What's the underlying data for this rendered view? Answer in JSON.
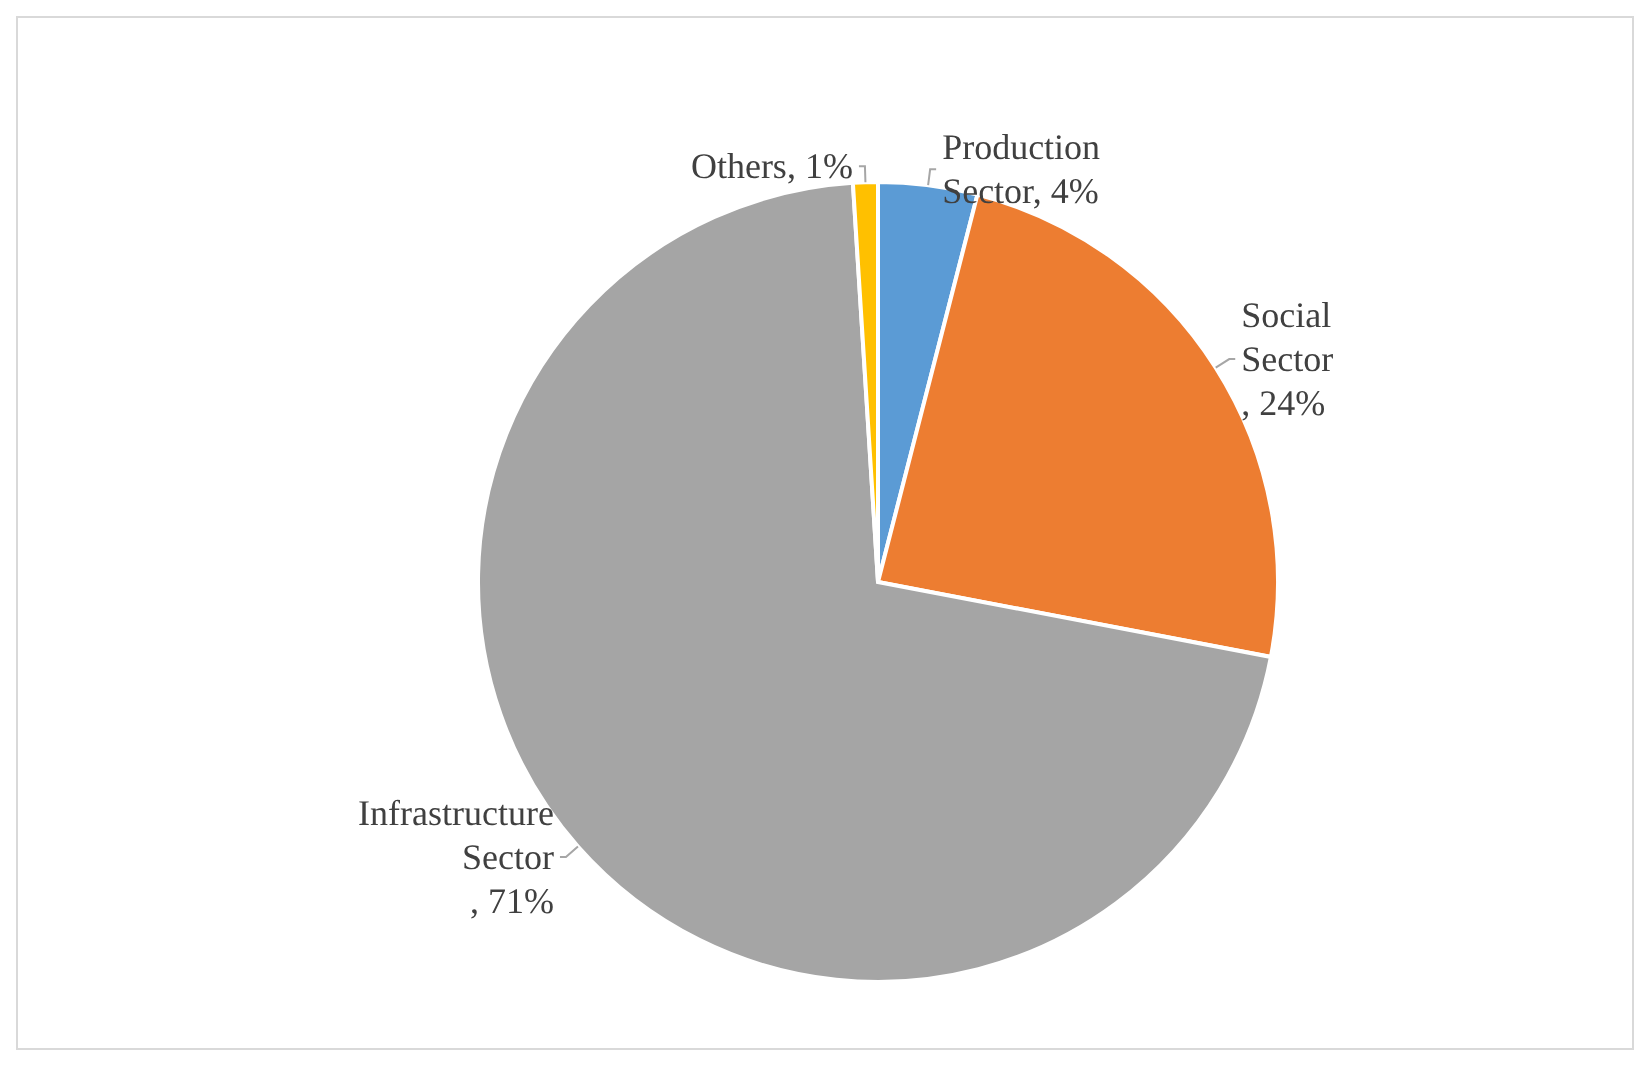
{
  "chart_data": {
    "type": "pie",
    "categories": [
      "Production Sector",
      "Social Sector",
      "Infrastructure Sector",
      "Others"
    ],
    "values": [
      4,
      24,
      71,
      1
    ],
    "colors": [
      "#5b9bd5",
      "#ed7d31",
      "#a5a5a5",
      "#ffc000"
    ],
    "value_labels": [
      ", 4%",
      ", 24%",
      ", 71%",
      ", 1%"
    ]
  }
}
